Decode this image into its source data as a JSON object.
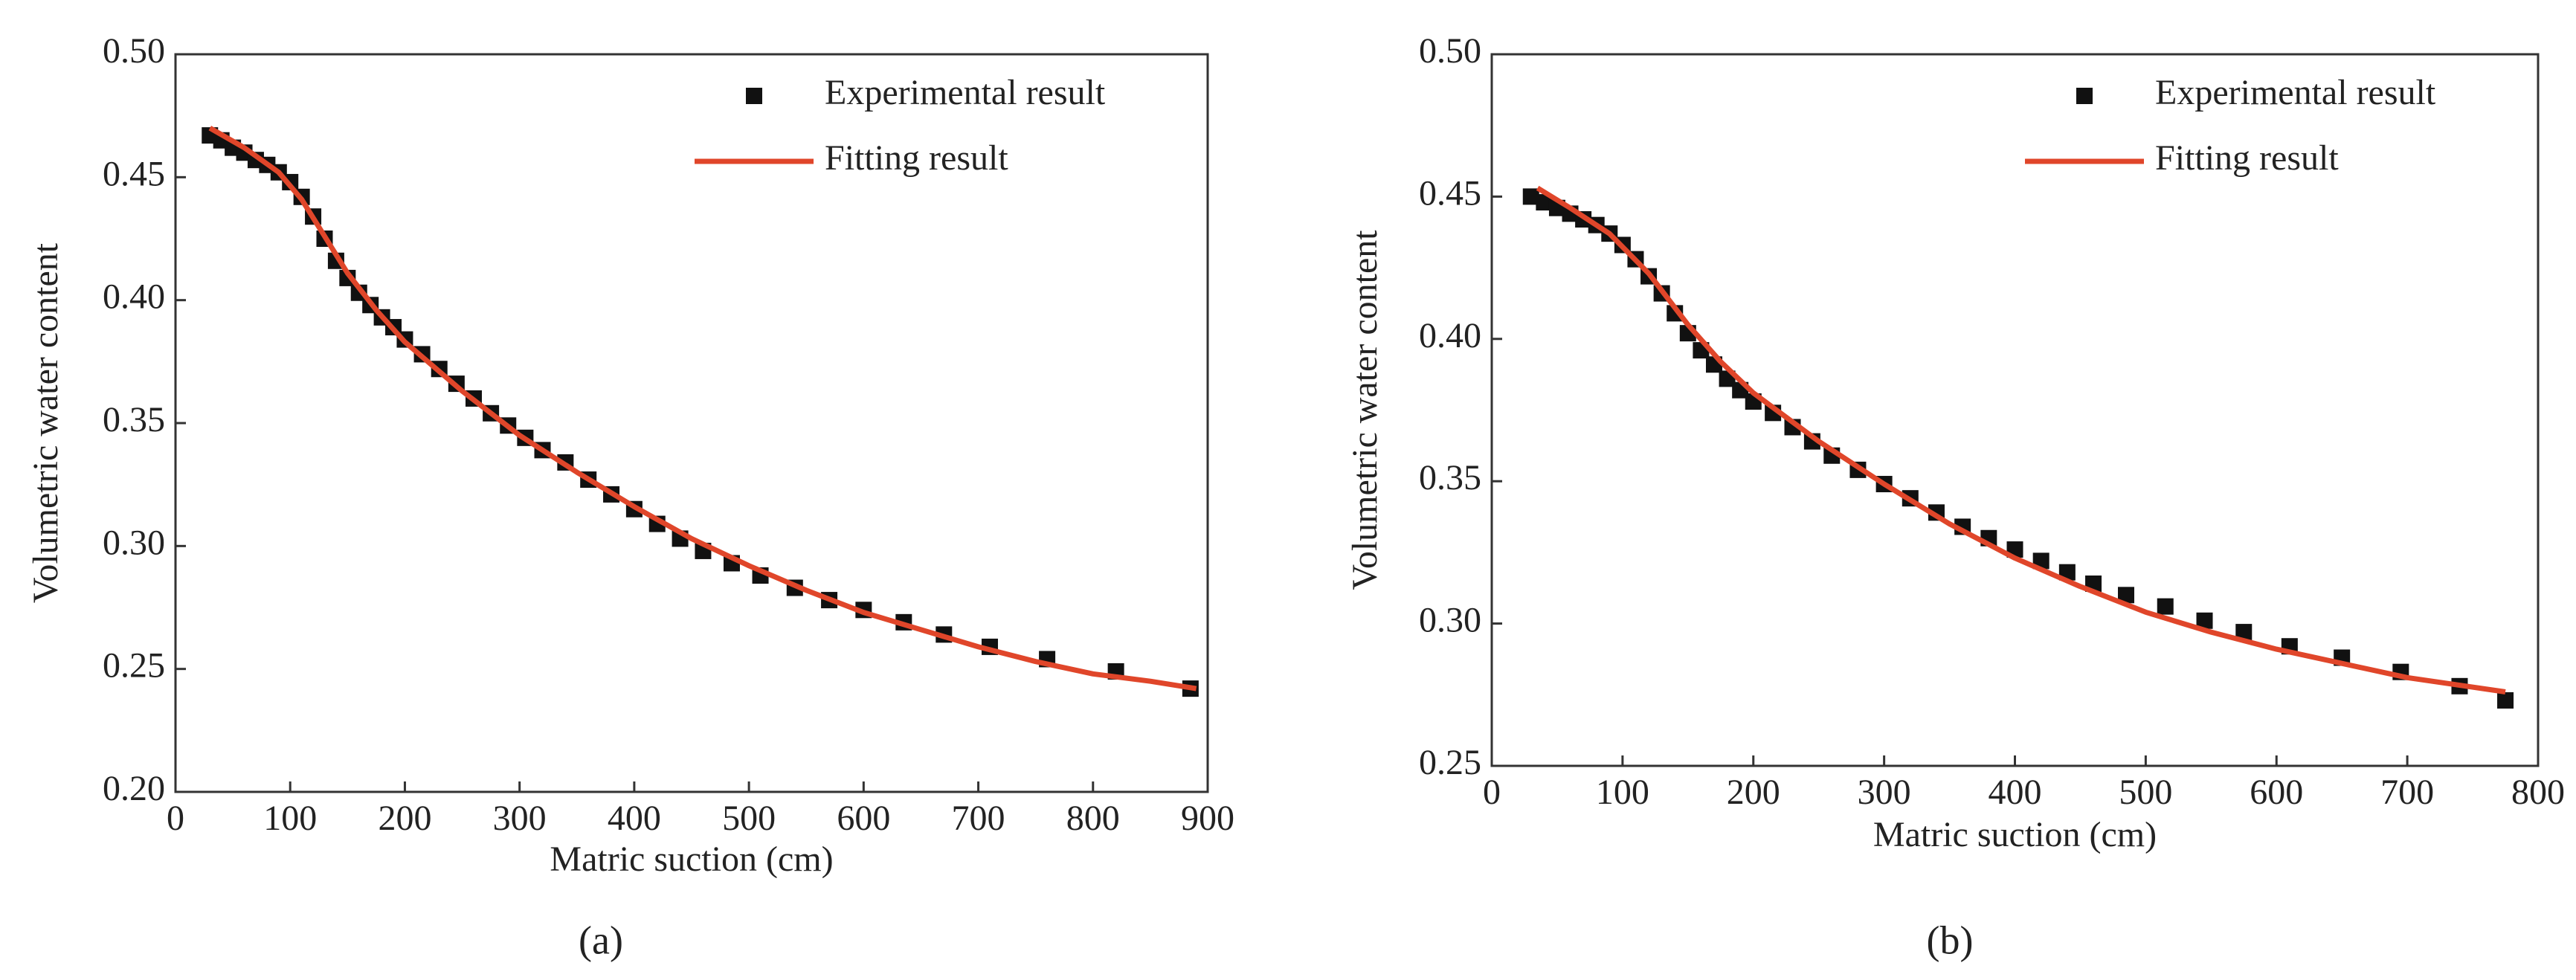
{
  "chart_data": [
    {
      "type": "scatter",
      "panel_label": "(a)",
      "x_label": "Matric suction (cm)",
      "y_label": "Volumetric water content",
      "xlim": [
        0,
        900
      ],
      "xticks": [
        0,
        100,
        200,
        300,
        400,
        500,
        600,
        700,
        800,
        900
      ],
      "ylim": [
        0.2,
        0.5
      ],
      "yticks": [
        {
          "value": 0.2,
          "label": "0.20"
        },
        {
          "value": 0.25,
          "label": "0.25"
        },
        {
          "value": 0.3,
          "label": "0.30"
        },
        {
          "value": 0.35,
          "label": "0.35"
        },
        {
          "value": 0.4,
          "label": "0.40"
        },
        {
          "value": 0.45,
          "label": "0.45"
        },
        {
          "value": 0.5,
          "label": "0.50"
        }
      ],
      "grid": false,
      "legend": "upper right",
      "series": [
        {
          "name": "Experimental result",
          "color": "#111111",
          "mode": "markers",
          "x": [
            30,
            40,
            50,
            60,
            70,
            80,
            90,
            100,
            110,
            120,
            130,
            140,
            150,
            160,
            170,
            180,
            190,
            200,
            215,
            230,
            245,
            260,
            275,
            290,
            305,
            320,
            340,
            360,
            380,
            400,
            420,
            440,
            460,
            485,
            510,
            540,
            570,
            600,
            635,
            670,
            710,
            760,
            820,
            885
          ],
          "values": [
            0.467,
            0.465,
            0.462,
            0.46,
            0.457,
            0.455,
            0.452,
            0.448,
            0.442,
            0.434,
            0.425,
            0.416,
            0.409,
            0.403,
            0.398,
            0.393,
            0.389,
            0.384,
            0.378,
            0.372,
            0.366,
            0.36,
            0.354,
            0.349,
            0.344,
            0.339,
            0.334,
            0.327,
            0.321,
            0.315,
            0.309,
            0.303,
            0.298,
            0.293,
            0.288,
            0.283,
            0.278,
            0.274,
            0.269,
            0.264,
            0.259,
            0.254,
            0.249,
            0.242
          ]
        },
        {
          "name": "Fitting result",
          "color": "#e0462a",
          "mode": "line",
          "x": [
            30,
            60,
            90,
            110,
            130,
            150,
            175,
            200,
            250,
            300,
            350,
            400,
            450,
            500,
            550,
            600,
            650,
            700,
            750,
            800,
            850,
            890
          ],
          "values": [
            0.47,
            0.462,
            0.452,
            0.441,
            0.426,
            0.411,
            0.396,
            0.383,
            0.363,
            0.345,
            0.33,
            0.316,
            0.303,
            0.292,
            0.282,
            0.273,
            0.266,
            0.259,
            0.253,
            0.248,
            0.245,
            0.242
          ]
        }
      ]
    },
    {
      "type": "scatter",
      "panel_label": "(b)",
      "x_label": "Matric suction (cm)",
      "y_label": "Volumetric water content",
      "xlim": [
        0,
        800
      ],
      "xticks": [
        0,
        100,
        200,
        300,
        400,
        500,
        600,
        700,
        800
      ],
      "ylim": [
        0.25,
        0.5
      ],
      "yticks": [
        {
          "value": 0.25,
          "label": "0.25"
        },
        {
          "value": 0.3,
          "label": "0.30"
        },
        {
          "value": 0.35,
          "label": "0.35"
        },
        {
          "value": 0.4,
          "label": "0.40"
        },
        {
          "value": 0.45,
          "label": "0.45"
        },
        {
          "value": 0.5,
          "label": "0.50"
        }
      ],
      "grid": false,
      "legend": "upper right",
      "series": [
        {
          "name": "Experimental result",
          "color": "#111111",
          "mode": "markers",
          "x": [
            30,
            40,
            50,
            60,
            70,
            80,
            90,
            100,
            110,
            120,
            130,
            140,
            150,
            160,
            170,
            180,
            190,
            200,
            215,
            230,
            245,
            260,
            280,
            300,
            320,
            340,
            360,
            380,
            400,
            420,
            440,
            460,
            485,
            515,
            545,
            575,
            610,
            650,
            695,
            740,
            775
          ],
          "values": [
            0.45,
            0.448,
            0.446,
            0.444,
            0.442,
            0.44,
            0.437,
            0.433,
            0.428,
            0.422,
            0.416,
            0.409,
            0.402,
            0.396,
            0.391,
            0.386,
            0.382,
            0.378,
            0.374,
            0.369,
            0.364,
            0.359,
            0.354,
            0.349,
            0.344,
            0.339,
            0.334,
            0.33,
            0.326,
            0.322,
            0.318,
            0.314,
            0.31,
            0.306,
            0.301,
            0.297,
            0.292,
            0.288,
            0.283,
            0.278,
            0.273
          ]
        },
        {
          "name": "Fitting result",
          "color": "#e0462a",
          "mode": "line",
          "x": [
            35,
            60,
            90,
            120,
            150,
            175,
            200,
            250,
            300,
            350,
            400,
            450,
            500,
            550,
            600,
            650,
            700,
            775
          ],
          "values": [
            0.453,
            0.446,
            0.437,
            0.423,
            0.405,
            0.392,
            0.381,
            0.364,
            0.349,
            0.335,
            0.323,
            0.313,
            0.304,
            0.297,
            0.291,
            0.286,
            0.281,
            0.276
          ]
        }
      ]
    }
  ]
}
